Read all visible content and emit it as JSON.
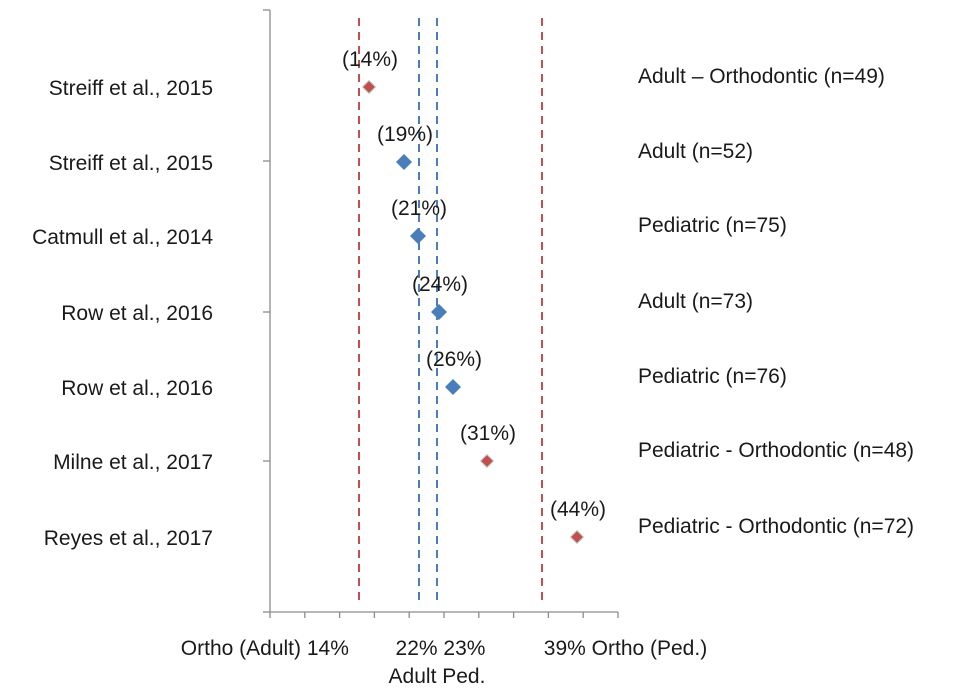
{
  "chart_data": {
    "type": "scatter",
    "title": "",
    "xlabel": "",
    "ylabel": "",
    "xlim": [
      0,
      50
    ],
    "grid": false,
    "legend": "none",
    "points": [
      {
        "study": "Streiff et al., 2015",
        "group": "Adult – Orthodontic (n=49)",
        "value": 14,
        "label": "(14%)",
        "color": "#c0504d",
        "marker": "diamond-small"
      },
      {
        "study": "Streiff et al., 2015",
        "group": "Adult (n=52)",
        "value": 19,
        "label": "(19%)",
        "color": "#4a7ebb",
        "marker": "diamond"
      },
      {
        "study": "Catmull et al., 2014",
        "group": "Pediatric (n=75)",
        "value": 21,
        "label": "(21%)",
        "color": "#4a7ebb",
        "marker": "diamond"
      },
      {
        "study": "Row et al., 2016",
        "group": "Adult (n=73)",
        "value": 24,
        "label": "(24%)",
        "color": "#4a7ebb",
        "marker": "diamond"
      },
      {
        "study": "Row et al., 2016",
        "group": "Pediatric (n=76)",
        "value": 26,
        "label": "(26%)",
        "color": "#4a7ebb",
        "marker": "diamond"
      },
      {
        "study": "Milne et al., 2017",
        "group": "Pediatric - Orthodontic (n=48)",
        "value": 31,
        "label": "(31%)",
        "color": "#c0504d",
        "marker": "diamond-small"
      },
      {
        "study": "Reyes et al., 2017",
        "group": "Pediatric - Orthodontic (n=72)",
        "value": 44,
        "label": "(44%)",
        "color": "#c0504d",
        "marker": "diamond-small"
      }
    ],
    "reference_lines": [
      {
        "value": 14,
        "color": "#c0504d",
        "style": "dashed"
      },
      {
        "value": 22,
        "color": "#4a7ebb",
        "style": "dashed"
      },
      {
        "value": 23,
        "color": "#4a7ebb",
        "style": "dashed"
      },
      {
        "value": 39,
        "color": "#c0504d",
        "style": "dashed"
      }
    ],
    "x_axis_labels": {
      "line1": "Ortho (Adult) 14%        22% 23%          39% Ortho (Ped.)",
      "line2": "Adult Ped."
    }
  }
}
